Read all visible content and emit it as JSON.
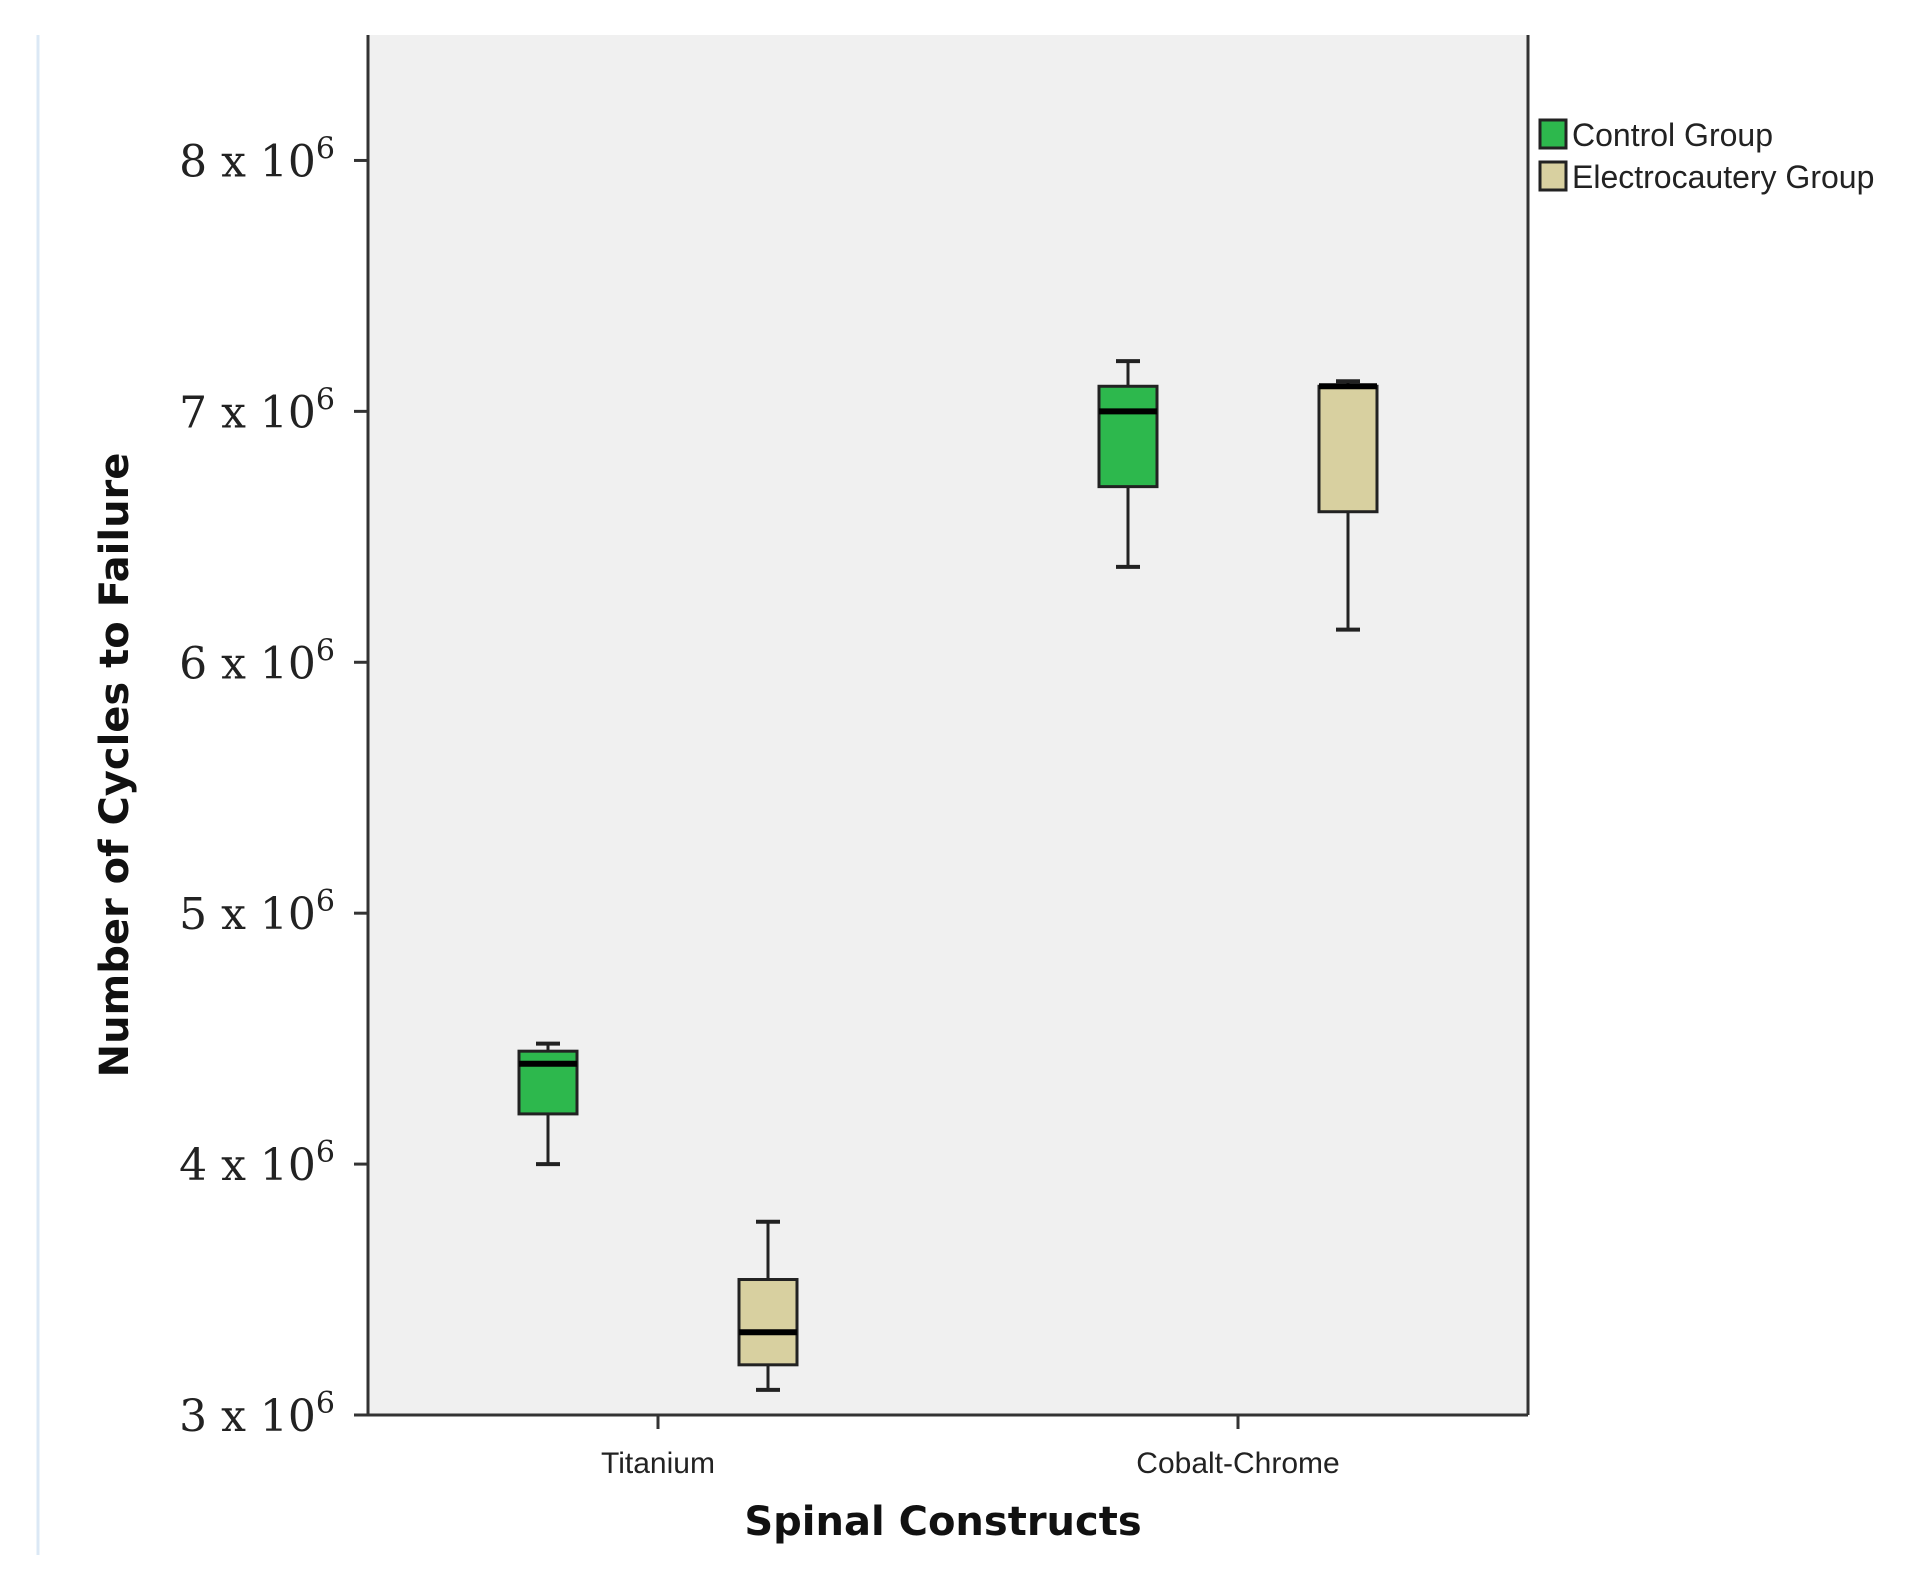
{
  "chart_data": {
    "type": "boxplot",
    "xlabel": "Spinal Constructs",
    "ylabel": "Number of Cycles to Failure",
    "ylim": [
      3000000,
      8500000
    ],
    "y_ticks": [
      {
        "value": 3000000,
        "mantissa": "3 x 10",
        "exponent": "6"
      },
      {
        "value": 4000000,
        "mantissa": "4 x 10",
        "exponent": "6"
      },
      {
        "value": 5000000,
        "mantissa": "5 x 10",
        "exponent": "6"
      },
      {
        "value": 6000000,
        "mantissa": "6 x 10",
        "exponent": "6"
      },
      {
        "value": 7000000,
        "mantissa": "7 x 10",
        "exponent": "6"
      },
      {
        "value": 8000000,
        "mantissa": "8 x 10",
        "exponent": "6"
      }
    ],
    "categories": [
      "Titanium",
      "Cobalt-Chrome"
    ],
    "series": [
      {
        "name": "Control Group",
        "color": "#2db84d",
        "boxes": [
          {
            "min": 4000000,
            "q1": 4200000,
            "median": 4400000,
            "q3": 4450000,
            "max": 4480000
          },
          {
            "min": 6380000,
            "q1": 6700000,
            "median": 7000000,
            "q3": 7100000,
            "max": 7200000
          }
        ]
      },
      {
        "name": "Electrocautery Group",
        "color": "#d8d0a0",
        "boxes": [
          {
            "min": 3100000,
            "q1": 3200000,
            "median": 3330000,
            "q3": 3540000,
            "max": 3770000
          },
          {
            "min": 6130000,
            "q1": 6600000,
            "median": 7100000,
            "q3": 7100000,
            "max": 7120000
          }
        ]
      }
    ],
    "legend_position": "top-right",
    "plot_background": "#f0f0f0",
    "grid": false
  }
}
